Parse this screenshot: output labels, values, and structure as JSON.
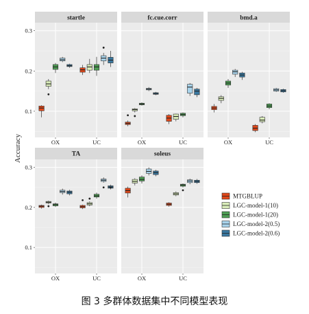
{
  "figure_caption": "图 3  多群体数据集中不同模型表现",
  "colors": {
    "panel_bg": "#ebebeb",
    "strip_bg": "#d9d9d9",
    "grid_major": "#ffffff",
    "grid_minor": "#f4f4f4",
    "MTGBLUP": "#e0481a",
    "LGC-model-1(10)": "#d9ecb9",
    "LGC-model-1(20)": "#4e9e54",
    "LGC-model-2(0.5)": "#a9d4ec",
    "LGC-model-2(0.6)": "#3a78a0"
  },
  "chart_data": {
    "type": "box",
    "ylabel": "Accuracy",
    "yticks": [
      0.1,
      0.2,
      0.3
    ],
    "ylim": [
      0.035,
      0.32
    ],
    "categories": [
      "OX",
      "UC"
    ],
    "legend_placement": "bottom-right",
    "series_names": [
      "MTGBLUP",
      "LGC-model-1(10)",
      "LGC-model-1(20)",
      "LGC-model-2(0.5)",
      "LGC-model-2(0.6)"
    ],
    "panels": [
      {
        "title": "startle",
        "boxes": {
          "OX": [
            {
              "min": 0.085,
              "q1": 0.101,
              "median": 0.108,
              "q3": 0.113,
              "max": 0.115,
              "outliers": []
            },
            {
              "min": 0.155,
              "q1": 0.162,
              "median": 0.168,
              "q3": 0.175,
              "max": 0.18,
              "outliers": [
                0.142
              ]
            },
            {
              "min": 0.195,
              "q1": 0.204,
              "median": 0.21,
              "q3": 0.216,
              "max": 0.22,
              "outliers": []
            },
            {
              "min": 0.222,
              "q1": 0.225,
              "median": 0.228,
              "q3": 0.232,
              "max": 0.235,
              "outliers": []
            },
            {
              "min": 0.208,
              "q1": 0.211,
              "median": 0.213,
              "q3": 0.216,
              "max": 0.218,
              "outliers": []
            }
          ],
          "UC": [
            {
              "min": 0.19,
              "q1": 0.197,
              "median": 0.203,
              "q3": 0.208,
              "max": 0.215,
              "outliers": []
            },
            {
              "min": 0.195,
              "q1": 0.202,
              "median": 0.21,
              "q3": 0.216,
              "max": 0.23,
              "outliers": []
            },
            {
              "min": 0.188,
              "q1": 0.202,
              "median": 0.21,
              "q3": 0.216,
              "max": 0.235,
              "outliers": []
            },
            {
              "min": 0.215,
              "q1": 0.225,
              "median": 0.232,
              "q3": 0.238,
              "max": 0.245,
              "outliers": [
                0.258
              ]
            },
            {
              "min": 0.21,
              "q1": 0.22,
              "median": 0.227,
              "q3": 0.234,
              "max": 0.25,
              "outliers": []
            }
          ]
        }
      },
      {
        "title": "fc.cue.corr",
        "boxes": {
          "OX": [
            {
              "min": 0.063,
              "q1": 0.067,
              "median": 0.07,
              "q3": 0.073,
              "max": 0.077,
              "outliers": [
                0.09
              ]
            },
            {
              "min": 0.097,
              "q1": 0.101,
              "median": 0.104,
              "q3": 0.106,
              "max": 0.108,
              "outliers": [
                0.088
              ]
            },
            {
              "min": 0.114,
              "q1": 0.116,
              "median": 0.118,
              "q3": 0.12,
              "max": 0.122,
              "outliers": []
            },
            {
              "min": 0.15,
              "q1": 0.153,
              "median": 0.155,
              "q3": 0.157,
              "max": 0.16,
              "outliers": []
            },
            {
              "min": 0.14,
              "q1": 0.142,
              "median": 0.144,
              "q3": 0.146,
              "max": 0.148,
              "outliers": []
            }
          ],
          "UC": [
            {
              "min": 0.068,
              "q1": 0.075,
              "median": 0.083,
              "q3": 0.09,
              "max": 0.093,
              "outliers": []
            },
            {
              "min": 0.075,
              "q1": 0.08,
              "median": 0.087,
              "q3": 0.093,
              "max": 0.094,
              "outliers": []
            },
            {
              "min": 0.085,
              "q1": 0.089,
              "median": 0.092,
              "q3": 0.095,
              "max": 0.097,
              "outliers": []
            },
            {
              "min": 0.138,
              "q1": 0.145,
              "median": 0.16,
              "q3": 0.167,
              "max": 0.17,
              "outliers": []
            },
            {
              "min": 0.135,
              "q1": 0.141,
              "median": 0.15,
              "q3": 0.155,
              "max": 0.158,
              "outliers": []
            }
          ]
        }
      },
      {
        "title": "bmd.a",
        "boxes": {
          "OX": [
            {
              "min": 0.097,
              "q1": 0.104,
              "median": 0.108,
              "q3": 0.112,
              "max": 0.118,
              "outliers": []
            },
            {
              "min": 0.12,
              "q1": 0.127,
              "median": 0.132,
              "q3": 0.136,
              "max": 0.14,
              "outliers": []
            },
            {
              "min": 0.158,
              "q1": 0.165,
              "median": 0.17,
              "q3": 0.175,
              "max": 0.18,
              "outliers": []
            },
            {
              "min": 0.185,
              "q1": 0.192,
              "median": 0.198,
              "q3": 0.202,
              "max": 0.205,
              "outliers": []
            },
            {
              "min": 0.178,
              "q1": 0.185,
              "median": 0.19,
              "q3": 0.195,
              "max": 0.198,
              "outliers": []
            }
          ],
          "UC": [
            {
              "min": 0.048,
              "q1": 0.052,
              "median": 0.058,
              "q3": 0.065,
              "max": 0.068,
              "outliers": []
            },
            {
              "min": 0.07,
              "q1": 0.074,
              "median": 0.078,
              "q3": 0.085,
              "max": 0.088,
              "outliers": []
            },
            {
              "min": 0.105,
              "q1": 0.109,
              "median": 0.113,
              "q3": 0.118,
              "max": 0.12,
              "outliers": []
            },
            {
              "min": 0.148,
              "q1": 0.15,
              "median": 0.153,
              "q3": 0.156,
              "max": 0.158,
              "outliers": []
            },
            {
              "min": 0.146,
              "q1": 0.148,
              "median": 0.151,
              "q3": 0.154,
              "max": 0.156,
              "outliers": []
            }
          ]
        }
      },
      {
        "title": "TA",
        "boxes": {
          "OX": [
            {
              "min": 0.197,
              "q1": 0.2,
              "median": 0.203,
              "q3": 0.205,
              "max": 0.207,
              "outliers": []
            },
            {
              "min": 0.208,
              "q1": 0.211,
              "median": 0.213,
              "q3": 0.215,
              "max": 0.217,
              "outliers": [
                0.203
              ]
            },
            {
              "min": 0.201,
              "q1": 0.204,
              "median": 0.207,
              "q3": 0.209,
              "max": 0.212,
              "outliers": []
            },
            {
              "min": 0.232,
              "q1": 0.237,
              "median": 0.24,
              "q3": 0.243,
              "max": 0.247,
              "outliers": []
            },
            {
              "min": 0.23,
              "q1": 0.234,
              "median": 0.238,
              "q3": 0.241,
              "max": 0.244,
              "outliers": []
            }
          ],
          "UC": [
            {
              "min": 0.196,
              "q1": 0.199,
              "median": 0.202,
              "q3": 0.205,
              "max": 0.207,
              "outliers": [
                0.218
              ]
            },
            {
              "min": 0.203,
              "q1": 0.206,
              "median": 0.209,
              "q3": 0.212,
              "max": 0.215,
              "outliers": [
                0.222
              ]
            },
            {
              "min": 0.222,
              "q1": 0.226,
              "median": 0.229,
              "q3": 0.233,
              "max": 0.237,
              "outliers": []
            },
            {
              "min": 0.262,
              "q1": 0.265,
              "median": 0.268,
              "q3": 0.271,
              "max": 0.275,
              "outliers": [
                0.25
              ]
            },
            {
              "min": 0.245,
              "q1": 0.248,
              "median": 0.251,
              "q3": 0.254,
              "max": 0.257,
              "outliers": [
                0.25
              ]
            }
          ]
        }
      },
      {
        "title": "soleus",
        "boxes": {
          "OX": [
            {
              "min": 0.225,
              "q1": 0.236,
              "median": 0.242,
              "q3": 0.248,
              "max": 0.252,
              "outliers": []
            },
            {
              "min": 0.255,
              "q1": 0.261,
              "median": 0.265,
              "q3": 0.27,
              "max": 0.273,
              "outliers": []
            },
            {
              "min": 0.26,
              "q1": 0.266,
              "median": 0.27,
              "q3": 0.276,
              "max": 0.28,
              "outliers": []
            },
            {
              "min": 0.28,
              "q1": 0.285,
              "median": 0.29,
              "q3": 0.296,
              "max": 0.3,
              "outliers": []
            },
            {
              "min": 0.278,
              "q1": 0.282,
              "median": 0.287,
              "q3": 0.291,
              "max": 0.294,
              "outliers": []
            }
          ],
          "UC": [
            {
              "min": 0.202,
              "q1": 0.205,
              "median": 0.208,
              "q3": 0.211,
              "max": 0.213,
              "outliers": []
            },
            {
              "min": 0.228,
              "q1": 0.231,
              "median": 0.234,
              "q3": 0.237,
              "max": 0.24,
              "outliers": []
            },
            {
              "min": 0.25,
              "q1": 0.253,
              "median": 0.256,
              "q3": 0.258,
              "max": 0.26,
              "outliers": [
                0.243
              ]
            },
            {
              "min": 0.258,
              "q1": 0.262,
              "median": 0.266,
              "q3": 0.269,
              "max": 0.272,
              "outliers": []
            },
            {
              "min": 0.259,
              "q1": 0.262,
              "median": 0.265,
              "q3": 0.268,
              "max": 0.271,
              "outliers": []
            }
          ]
        }
      }
    ]
  }
}
